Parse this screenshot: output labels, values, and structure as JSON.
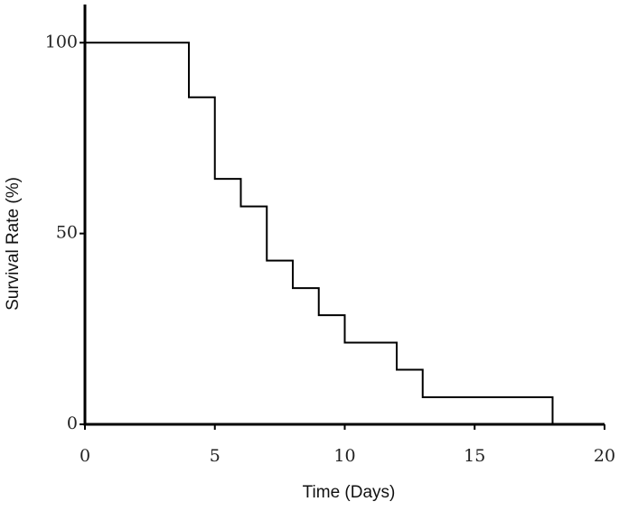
{
  "chart_data": {
    "type": "step",
    "x_label": "Time (Days)",
    "y_label": "Survival Rate (%)",
    "x": [
      0,
      4,
      5,
      6,
      7,
      8,
      9,
      10,
      12,
      13,
      18
    ],
    "values": [
      100,
      85.7,
      64.3,
      57.1,
      42.9,
      35.7,
      28.6,
      21.4,
      14.3,
      7.1,
      0
    ],
    "color": "#000000",
    "xlim": [
      0,
      20
    ],
    "ylim": [
      0,
      110
    ],
    "xticks": [
      0,
      5,
      10,
      15,
      20
    ],
    "yticks": [
      0,
      50,
      100
    ],
    "grid": false
  }
}
